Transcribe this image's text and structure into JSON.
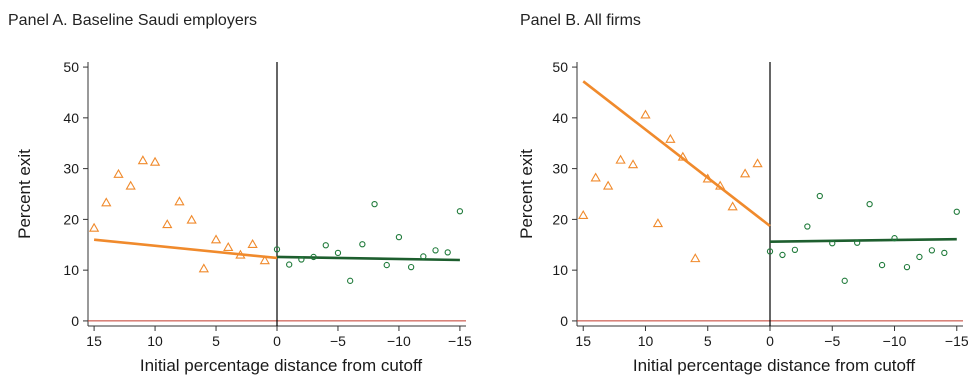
{
  "chart_data": [
    {
      "type": "scatter",
      "title": "Panel A. Baseline Saudi employers",
      "xlabel": "Initial percentage distance from cutoff",
      "ylabel": "Percent exit",
      "xlim": [
        15.5,
        -15.5
      ],
      "ylim": [
        -1,
        51
      ],
      "x_ticks": [
        15,
        10,
        5,
        0,
        -5,
        -10,
        -15
      ],
      "x_tick_labels": [
        "15",
        "10",
        "5",
        "0",
        "−5",
        "−10",
        "−15"
      ],
      "y_ticks": [
        0,
        10,
        20,
        30,
        40,
        50
      ],
      "y_tick_labels": [
        "0",
        "10",
        "20",
        "30",
        "40",
        "50"
      ],
      "cutoff_x": 0,
      "reference_y": 0,
      "colors": {
        "left": "#f08a2c",
        "right": "#1f7a3a",
        "right_fit": "#1d5e2e",
        "reference": "#c0392b",
        "cutoff": "#000000"
      },
      "series": [
        {
          "marker": "triangle",
          "x": [
            15,
            14,
            13,
            12,
            11,
            10,
            9,
            8,
            7,
            6,
            5,
            4,
            3,
            2,
            1
          ],
          "y": [
            18.3,
            23.3,
            28.9,
            26.6,
            31.6,
            31.3,
            19.0,
            23.5,
            19.9,
            10.3,
            16.0,
            14.5,
            13.0,
            15.1,
            11.9
          ],
          "fit": {
            "x": [
              15,
              0
            ],
            "y": [
              16.0,
              12.4
            ]
          }
        },
        {
          "marker": "circle",
          "x": [
            0,
            -1,
            -2,
            -3,
            -4,
            -5,
            -6,
            -7,
            -8,
            -9,
            -10,
            -11,
            -12,
            -13,
            -14,
            -15
          ],
          "y": [
            14.1,
            11.1,
            12.1,
            12.6,
            14.9,
            13.4,
            7.9,
            15.1,
            23.0,
            11.0,
            16.5,
            10.6,
            12.7,
            13.9,
            13.5,
            21.6
          ],
          "fit": {
            "x": [
              0,
              -15
            ],
            "y": [
              12.6,
              12.0
            ]
          }
        }
      ]
    },
    {
      "type": "scatter",
      "title": "Panel B. All firms",
      "xlabel": "Initial percentage distance from cutoff",
      "ylabel": "Percent exit",
      "xlim": [
        15.5,
        -15.5
      ],
      "ylim": [
        -1,
        51
      ],
      "x_ticks": [
        15,
        10,
        5,
        0,
        -5,
        -10,
        -15
      ],
      "x_tick_labels": [
        "15",
        "10",
        "5",
        "0",
        "−5",
        "−10",
        "−15"
      ],
      "y_ticks": [
        0,
        10,
        20,
        30,
        40,
        50
      ],
      "y_tick_labels": [
        "0",
        "10",
        "20",
        "30",
        "40",
        "50"
      ],
      "cutoff_x": 0,
      "reference_y": 0,
      "colors": {
        "left": "#f08a2c",
        "right": "#1f7a3a",
        "right_fit": "#1d5e2e",
        "reference": "#c0392b",
        "cutoff": "#000000"
      },
      "series": [
        {
          "marker": "triangle",
          "x": [
            15,
            14,
            13,
            12,
            11,
            10,
            9,
            8,
            7,
            6,
            5,
            4,
            3,
            2,
            1
          ],
          "y": [
            20.8,
            28.2,
            26.6,
            31.7,
            30.8,
            40.6,
            19.2,
            35.8,
            32.3,
            12.3,
            28.0,
            26.6,
            22.5,
            29.0,
            31.0
          ],
          "fit": {
            "x": [
              15,
              0
            ],
            "y": [
              47.2,
              18.7
            ]
          }
        },
        {
          "marker": "circle",
          "x": [
            0,
            -1,
            -2,
            -3,
            -4,
            -5,
            -6,
            -7,
            -8,
            -9,
            -10,
            -11,
            -12,
            -13,
            -14,
            -15
          ],
          "y": [
            13.7,
            13.0,
            14.0,
            18.6,
            24.6,
            15.3,
            7.9,
            15.4,
            23.0,
            11.0,
            16.3,
            10.6,
            12.6,
            13.9,
            13.4,
            21.5
          ],
          "fit": {
            "x": [
              0,
              -15
            ],
            "y": [
              15.6,
              16.1
            ]
          }
        }
      ]
    }
  ]
}
